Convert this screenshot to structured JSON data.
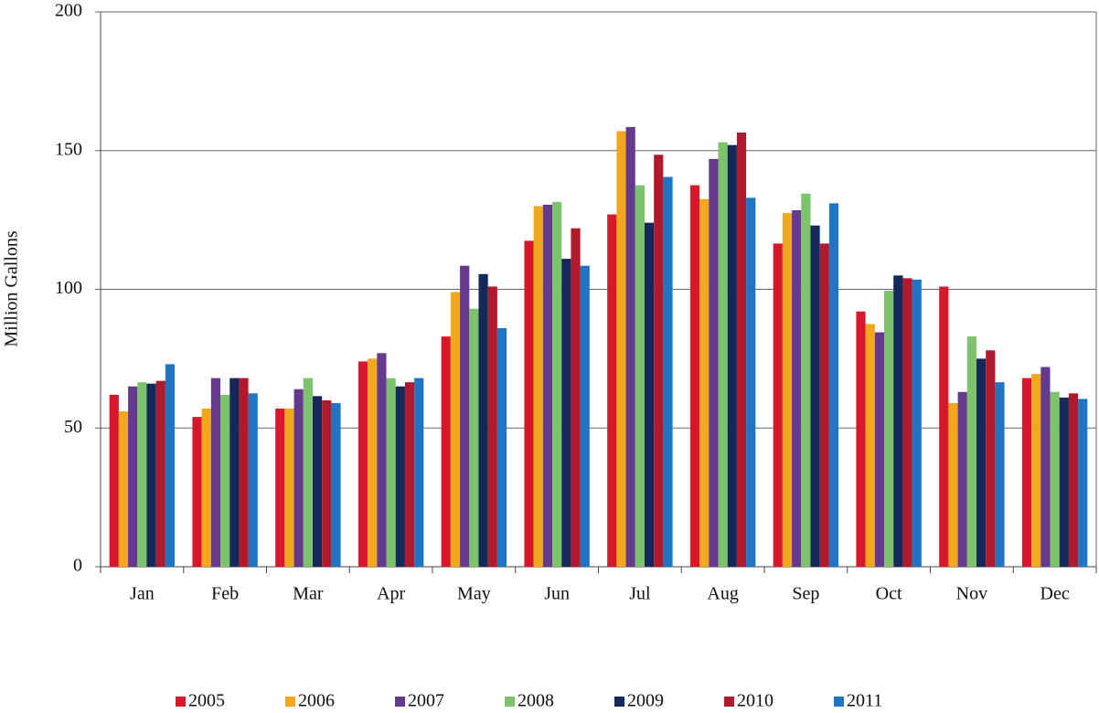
{
  "chart_data": {
    "type": "bar",
    "y_label": "Million Gallons",
    "categories": [
      "Jan",
      "Feb",
      "Mar",
      "Apr",
      "May",
      "Jun",
      "Jul",
      "Aug",
      "Sep",
      "Oct",
      "Nov",
      "Dec"
    ],
    "series": [
      {
        "name": "2005",
        "color": "#d7182a",
        "values": [
          62,
          54,
          57,
          74,
          83,
          117.5,
          127,
          137.5,
          116.5,
          92,
          101,
          68
        ]
      },
      {
        "name": "2006",
        "color": "#f2a81d",
        "values": [
          56,
          57,
          57,
          75,
          99,
          130,
          157,
          132.5,
          127.5,
          87.5,
          59,
          69.5
        ]
      },
      {
        "name": "2007",
        "color": "#653a8e",
        "values": [
          65,
          68,
          64,
          77,
          108.5,
          130.5,
          158.5,
          147,
          128.5,
          84.5,
          63,
          72
        ]
      },
      {
        "name": "2008",
        "color": "#7dc36b",
        "values": [
          66.5,
          62,
          68,
          68,
          93,
          131.5,
          137.5,
          153,
          134.5,
          99.5,
          83,
          63
        ]
      },
      {
        "name": "2009",
        "color": "#14285a",
        "values": [
          66,
          68,
          61.5,
          65,
          105.5,
          111,
          124,
          152,
          123,
          105,
          75,
          61
        ]
      },
      {
        "name": "2010",
        "color": "#b01a2c",
        "values": [
          67,
          68,
          60,
          66.5,
          101,
          122,
          148.5,
          156.5,
          116.5,
          104,
          78,
          62.5
        ]
      },
      {
        "name": "2011",
        "color": "#1f74c4",
        "values": [
          73,
          62.5,
          59,
          68,
          86,
          108.5,
          140.5,
          133,
          131,
          103.5,
          66.5,
          60.5
        ]
      }
    ],
    "ylim": [
      0,
      200
    ],
    "yticks": [
      0,
      50,
      100,
      150,
      200
    ],
    "grid": true
  }
}
